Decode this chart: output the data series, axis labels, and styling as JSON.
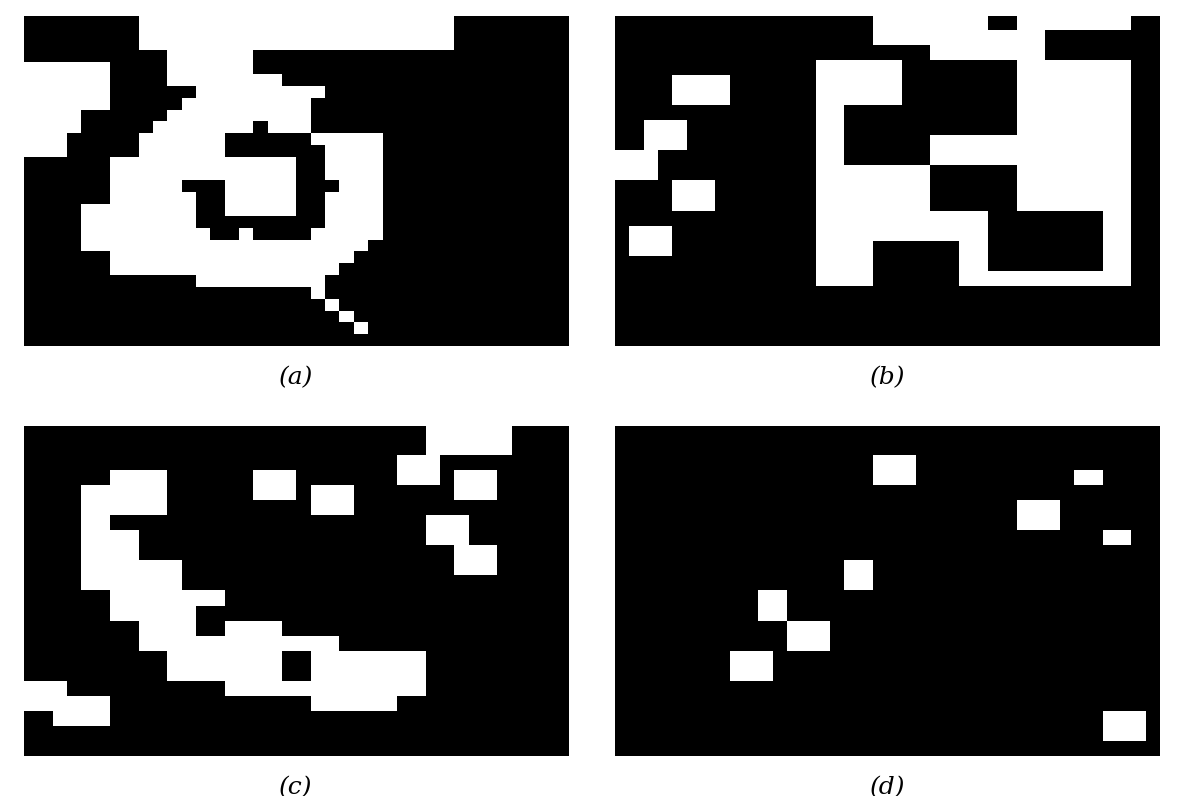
{
  "background_color": "#ffffff",
  "label_a": "(a)",
  "label_b": "(b)",
  "label_c": "(c)",
  "label_d": "(d)",
  "label_fontsize": 18,
  "figsize": [
    11.83,
    7.96
  ],
  "dpi": 100
}
